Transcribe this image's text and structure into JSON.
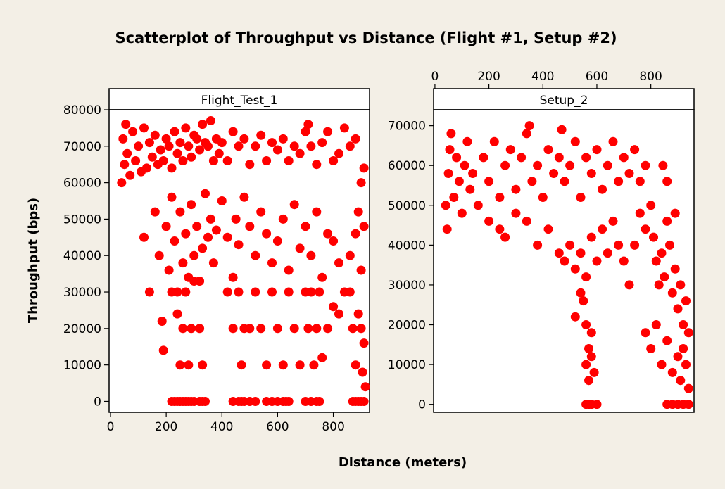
{
  "chart_data": {
    "type": "scatter",
    "title": "Scatterplot of Throughput vs Distance (Flight #1, Setup #2)",
    "xlabel": "Distance (meters)",
    "ylabel": "Throughput (bps)",
    "marker_color": "#ff0000",
    "panels": [
      {
        "name": "Flight_Test_1",
        "xlim": [
          -5,
          930
        ],
        "ylim": [
          -3000,
          80000
        ],
        "x_ticks": [
          "0",
          "200",
          "400",
          "600",
          "800"
        ],
        "y_ticks": [
          "0",
          "10000",
          "20000",
          "30000",
          "40000",
          "50000",
          "60000",
          "70000",
          "80000"
        ],
        "points": [
          [
            40,
            60000
          ],
          [
            45,
            72000
          ],
          [
            50,
            65000
          ],
          [
            55,
            76000
          ],
          [
            60,
            68000
          ],
          [
            70,
            62000
          ],
          [
            80,
            74000
          ],
          [
            90,
            66000
          ],
          [
            100,
            70000
          ],
          [
            110,
            63000
          ],
          [
            120,
            75000
          ],
          [
            130,
            64000
          ],
          [
            140,
            71000
          ],
          [
            150,
            67000
          ],
          [
            160,
            73000
          ],
          [
            170,
            65000
          ],
          [
            180,
            69000
          ],
          [
            190,
            66000
          ],
          [
            200,
            72000
          ],
          [
            210,
            70000
          ],
          [
            220,
            64000
          ],
          [
            230,
            74000
          ],
          [
            240,
            68000
          ],
          [
            250,
            71000
          ],
          [
            260,
            66000
          ],
          [
            270,
            75000
          ],
          [
            280,
            70000
          ],
          [
            290,
            67000
          ],
          [
            300,
            73000
          ],
          [
            310,
            72000
          ],
          [
            320,
            69000
          ],
          [
            330,
            76000
          ],
          [
            340,
            71000
          ],
          [
            350,
            70000
          ],
          [
            360,
            77000
          ],
          [
            370,
            66000
          ],
          [
            380,
            72000
          ],
          [
            390,
            68000
          ],
          [
            400,
            71000
          ],
          [
            420,
            66000
          ],
          [
            440,
            74000
          ],
          [
            460,
            70000
          ],
          [
            480,
            72000
          ],
          [
            500,
            65000
          ],
          [
            520,
            70000
          ],
          [
            540,
            73000
          ],
          [
            560,
            66000
          ],
          [
            580,
            71000
          ],
          [
            600,
            69000
          ],
          [
            620,
            72000
          ],
          [
            640,
            66000
          ],
          [
            660,
            70000
          ],
          [
            680,
            68000
          ],
          [
            700,
            74000
          ],
          [
            710,
            76000
          ],
          [
            720,
            70000
          ],
          [
            740,
            65000
          ],
          [
            760,
            71000
          ],
          [
            780,
            74000
          ],
          [
            800,
            66000
          ],
          [
            820,
            68000
          ],
          [
            840,
            75000
          ],
          [
            860,
            70000
          ],
          [
            880,
            72000
          ],
          [
            900,
            60000
          ],
          [
            910,
            64000
          ],
          [
            120,
            45000
          ],
          [
            140,
            30000
          ],
          [
            160,
            52000
          ],
          [
            175,
            40000
          ],
          [
            185,
            22000
          ],
          [
            190,
            14000
          ],
          [
            200,
            48000
          ],
          [
            210,
            36000
          ],
          [
            220,
            56000
          ],
          [
            230,
            44000
          ],
          [
            240,
            30000
          ],
          [
            250,
            52000
          ],
          [
            260,
            38000
          ],
          [
            270,
            46000
          ],
          [
            280,
            34000
          ],
          [
            290,
            54000
          ],
          [
            300,
            40000
          ],
          [
            310,
            48000
          ],
          [
            320,
            33000
          ],
          [
            330,
            42000
          ],
          [
            340,
            57000
          ],
          [
            350,
            45000
          ],
          [
            360,
            50000
          ],
          [
            370,
            38000
          ],
          [
            380,
            47000
          ],
          [
            400,
            55000
          ],
          [
            420,
            45000
          ],
          [
            440,
            34000
          ],
          [
            450,
            50000
          ],
          [
            460,
            43000
          ],
          [
            480,
            56000
          ],
          [
            500,
            48000
          ],
          [
            520,
            40000
          ],
          [
            540,
            52000
          ],
          [
            560,
            46000
          ],
          [
            580,
            38000
          ],
          [
            600,
            44000
          ],
          [
            620,
            50000
          ],
          [
            640,
            36000
          ],
          [
            660,
            54000
          ],
          [
            680,
            42000
          ],
          [
            700,
            48000
          ],
          [
            720,
            40000
          ],
          [
            740,
            52000
          ],
          [
            760,
            34000
          ],
          [
            780,
            46000
          ],
          [
            800,
            44000
          ],
          [
            820,
            38000
          ],
          [
            840,
            30000
          ],
          [
            860,
            40000
          ],
          [
            880,
            46000
          ],
          [
            890,
            52000
          ],
          [
            900,
            36000
          ],
          [
            910,
            48000
          ],
          [
            220,
            30000
          ],
          [
            240,
            24000
          ],
          [
            250,
            10000
          ],
          [
            260,
            20000
          ],
          [
            270,
            30000
          ],
          [
            280,
            10000
          ],
          [
            290,
            20000
          ],
          [
            300,
            33000
          ],
          [
            320,
            20000
          ],
          [
            330,
            10000
          ],
          [
            420,
            30000
          ],
          [
            440,
            20000
          ],
          [
            460,
            30000
          ],
          [
            470,
            10000
          ],
          [
            480,
            20000
          ],
          [
            500,
            20000
          ],
          [
            520,
            30000
          ],
          [
            540,
            20000
          ],
          [
            560,
            10000
          ],
          [
            580,
            30000
          ],
          [
            600,
            20000
          ],
          [
            620,
            10000
          ],
          [
            640,
            30000
          ],
          [
            660,
            20000
          ],
          [
            680,
            10000
          ],
          [
            700,
            30000
          ],
          [
            710,
            20000
          ],
          [
            720,
            30000
          ],
          [
            730,
            10000
          ],
          [
            740,
            20000
          ],
          [
            750,
            30000
          ],
          [
            760,
            12000
          ],
          [
            780,
            20000
          ],
          [
            800,
            26000
          ],
          [
            820,
            24000
          ],
          [
            860,
            30000
          ],
          [
            870,
            20000
          ],
          [
            880,
            10000
          ],
          [
            890,
            24000
          ],
          [
            900,
            20000
          ],
          [
            905,
            8000
          ],
          [
            910,
            16000
          ],
          [
            915,
            4000
          ],
          [
            220,
            0
          ],
          [
            230,
            0
          ],
          [
            240,
            0
          ],
          [
            250,
            0
          ],
          [
            260,
            0
          ],
          [
            270,
            0
          ],
          [
            280,
            0
          ],
          [
            290,
            0
          ],
          [
            300,
            0
          ],
          [
            320,
            0
          ],
          [
            330,
            0
          ],
          [
            340,
            0
          ],
          [
            440,
            0
          ],
          [
            460,
            0
          ],
          [
            470,
            0
          ],
          [
            480,
            0
          ],
          [
            500,
            0
          ],
          [
            520,
            0
          ],
          [
            560,
            0
          ],
          [
            580,
            0
          ],
          [
            600,
            0
          ],
          [
            620,
            0
          ],
          [
            630,
            0
          ],
          [
            640,
            0
          ],
          [
            700,
            0
          ],
          [
            720,
            0
          ],
          [
            740,
            0
          ],
          [
            750,
            0
          ],
          [
            870,
            0
          ],
          [
            880,
            0
          ],
          [
            890,
            0
          ],
          [
            900,
            0
          ],
          [
            910,
            0
          ]
        ]
      },
      {
        "name": "Setup_2",
        "xlim": [
          -5,
          960
        ],
        "ylim": [
          -2000,
          74000
        ],
        "x_ticks": [
          "0",
          "200",
          "400",
          "600",
          "800"
        ],
        "y_ticks": [
          "0",
          "10000",
          "20000",
          "30000",
          "40000",
          "50000",
          "60000",
          "70000"
        ],
        "points": [
          [
            40,
            50000
          ],
          [
            45,
            44000
          ],
          [
            50,
            58000
          ],
          [
            55,
            64000
          ],
          [
            60,
            68000
          ],
          [
            70,
            52000
          ],
          [
            80,
            62000
          ],
          [
            90,
            56000
          ],
          [
            100,
            48000
          ],
          [
            110,
            60000
          ],
          [
            120,
            66000
          ],
          [
            130,
            54000
          ],
          [
            140,
            58000
          ],
          [
            160,
            50000
          ],
          [
            180,
            62000
          ],
          [
            200,
            56000
          ],
          [
            220,
            66000
          ],
          [
            240,
            52000
          ],
          [
            260,
            60000
          ],
          [
            280,
            64000
          ],
          [
            300,
            54000
          ],
          [
            320,
            62000
          ],
          [
            340,
            68000
          ],
          [
            350,
            70000
          ],
          [
            360,
            56000
          ],
          [
            380,
            60000
          ],
          [
            400,
            52000
          ],
          [
            420,
            64000
          ],
          [
            440,
            58000
          ],
          [
            460,
            62000
          ],
          [
            470,
            69000
          ],
          [
            480,
            56000
          ],
          [
            500,
            60000
          ],
          [
            520,
            66000
          ],
          [
            540,
            52000
          ],
          [
            560,
            62000
          ],
          [
            580,
            58000
          ],
          [
            600,
            64000
          ],
          [
            620,
            54000
          ],
          [
            640,
            60000
          ],
          [
            660,
            66000
          ],
          [
            680,
            56000
          ],
          [
            700,
            62000
          ],
          [
            720,
            58000
          ],
          [
            740,
            64000
          ],
          [
            760,
            56000
          ],
          [
            780,
            60000
          ],
          [
            200,
            46000
          ],
          [
            240,
            44000
          ],
          [
            260,
            42000
          ],
          [
            300,
            48000
          ],
          [
            340,
            46000
          ],
          [
            380,
            40000
          ],
          [
            420,
            44000
          ],
          [
            460,
            38000
          ],
          [
            480,
            36000
          ],
          [
            500,
            40000
          ],
          [
            520,
            34000
          ],
          [
            540,
            38000
          ],
          [
            560,
            32000
          ],
          [
            580,
            42000
          ],
          [
            600,
            36000
          ],
          [
            620,
            44000
          ],
          [
            640,
            38000
          ],
          [
            660,
            46000
          ],
          [
            680,
            40000
          ],
          [
            700,
            36000
          ],
          [
            720,
            30000
          ],
          [
            740,
            40000
          ],
          [
            760,
            48000
          ],
          [
            780,
            44000
          ],
          [
            800,
            50000
          ],
          [
            810,
            42000
          ],
          [
            820,
            36000
          ],
          [
            830,
            30000
          ],
          [
            840,
            38000
          ],
          [
            850,
            32000
          ],
          [
            860,
            46000
          ],
          [
            870,
            40000
          ],
          [
            880,
            28000
          ],
          [
            890,
            34000
          ],
          [
            900,
            24000
          ],
          [
            910,
            30000
          ],
          [
            920,
            20000
          ],
          [
            930,
            26000
          ],
          [
            940,
            18000
          ],
          [
            845,
            60000
          ],
          [
            860,
            56000
          ],
          [
            890,
            48000
          ],
          [
            520,
            22000
          ],
          [
            540,
            28000
          ],
          [
            550,
            26000
          ],
          [
            560,
            20000
          ],
          [
            570,
            14000
          ],
          [
            580,
            18000
          ],
          [
            560,
            10000
          ],
          [
            570,
            6000
          ],
          [
            580,
            12000
          ],
          [
            590,
            8000
          ],
          [
            780,
            18000
          ],
          [
            800,
            14000
          ],
          [
            820,
            20000
          ],
          [
            840,
            10000
          ],
          [
            860,
            16000
          ],
          [
            880,
            8000
          ],
          [
            900,
            12000
          ],
          [
            910,
            6000
          ],
          [
            920,
            14000
          ],
          [
            930,
            10000
          ],
          [
            940,
            4000
          ],
          [
            560,
            0
          ],
          [
            570,
            0
          ],
          [
            580,
            0
          ],
          [
            600,
            0
          ],
          [
            860,
            0
          ],
          [
            880,
            0
          ],
          [
            900,
            0
          ],
          [
            920,
            0
          ],
          [
            940,
            0
          ]
        ]
      }
    ]
  }
}
